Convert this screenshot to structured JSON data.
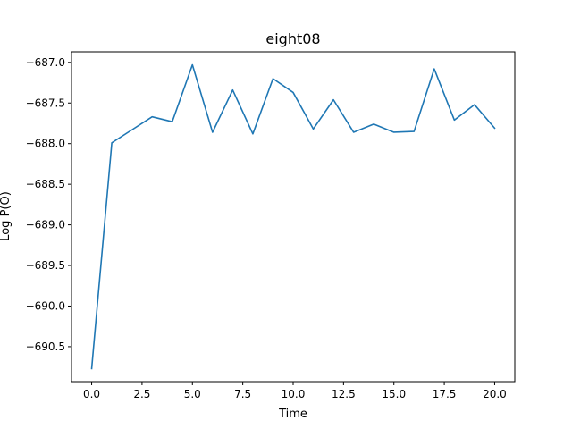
{
  "chart_data": {
    "type": "line",
    "title": "eight08",
    "xlabel": "Time",
    "ylabel": "Log P(O)",
    "xlim": [
      -1,
      21
    ],
    "ylim": [
      -690.93,
      -686.87
    ],
    "x_ticks": [
      0.0,
      2.5,
      5.0,
      7.5,
      10.0,
      12.5,
      15.0,
      17.5,
      20.0
    ],
    "x_tick_labels": [
      "0.0",
      "2.5",
      "5.0",
      "7.5",
      "10.0",
      "12.5",
      "15.0",
      "17.5",
      "20.0"
    ],
    "y_ticks": [
      -687.0,
      -687.5,
      -688.0,
      -688.5,
      -689.0,
      -689.5,
      -690.0,
      -690.5
    ],
    "y_tick_labels": [
      "−687.0",
      "−687.5",
      "−688.0",
      "−688.5",
      "−689.0",
      "−689.5",
      "−690.0",
      "−690.5"
    ],
    "grid": false,
    "series": [
      {
        "color": "#1f77b4",
        "x": [
          0,
          1,
          2,
          3,
          4,
          5,
          6,
          7,
          8,
          9,
          10,
          11,
          12,
          13,
          14,
          15,
          16,
          17,
          18,
          19,
          20
        ],
        "y": [
          -690.77,
          -687.99,
          -687.83,
          -687.67,
          -687.73,
          -687.03,
          -687.86,
          -687.34,
          -687.88,
          -687.2,
          -687.37,
          -687.82,
          -687.46,
          -687.86,
          -687.76,
          -687.86,
          -687.85,
          -687.08,
          -687.71,
          -687.52,
          -687.81
        ]
      }
    ]
  }
}
